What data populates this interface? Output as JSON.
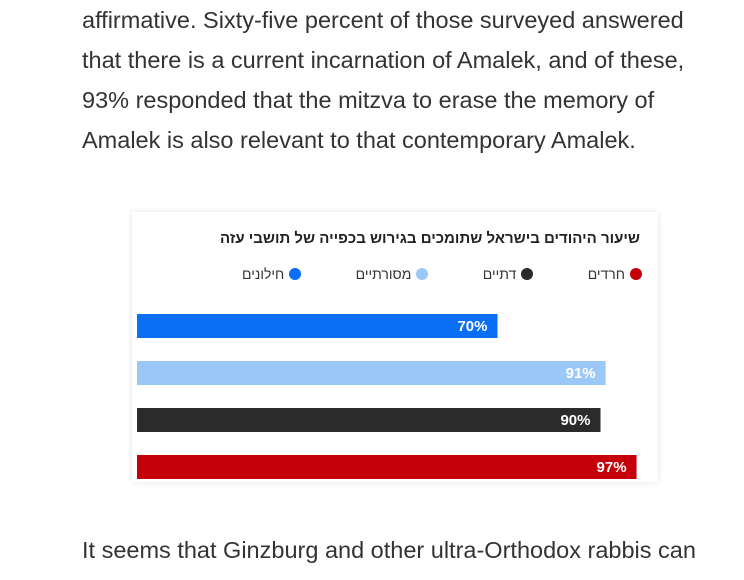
{
  "article": {
    "paragraph_top": "affirmative. Sixty-five percent of those surveyed answered that there is a current incarnation of Amalek, and of these, 93% responded that the mitzva to erase the memory of Amalek is also relevant to that contemporary Amalek.",
    "paragraph_bottom": "It seems that Ginzburg and other ultra-Orthodox rabbis can"
  },
  "chart_data": {
    "type": "bar",
    "orientation": "horizontal",
    "title": "שיעור היהודים בישראל שתומכים בגירוש בכפייה של תושבי עזה",
    "xlim": [
      0,
      100
    ],
    "legend_position": "top",
    "series": [
      {
        "name": "חילונים",
        "value": 70,
        "label": "70%",
        "color": "#0a6ff5"
      },
      {
        "name": "מסורתיים",
        "value": 91,
        "label": "91%",
        "color": "#9cc8f7"
      },
      {
        "name": "דתיים",
        "value": 90,
        "label": "90%",
        "color": "#2b2b2b"
      },
      {
        "name": "חרדים",
        "value": 97,
        "label": "97%",
        "color": "#c5000b"
      }
    ]
  }
}
